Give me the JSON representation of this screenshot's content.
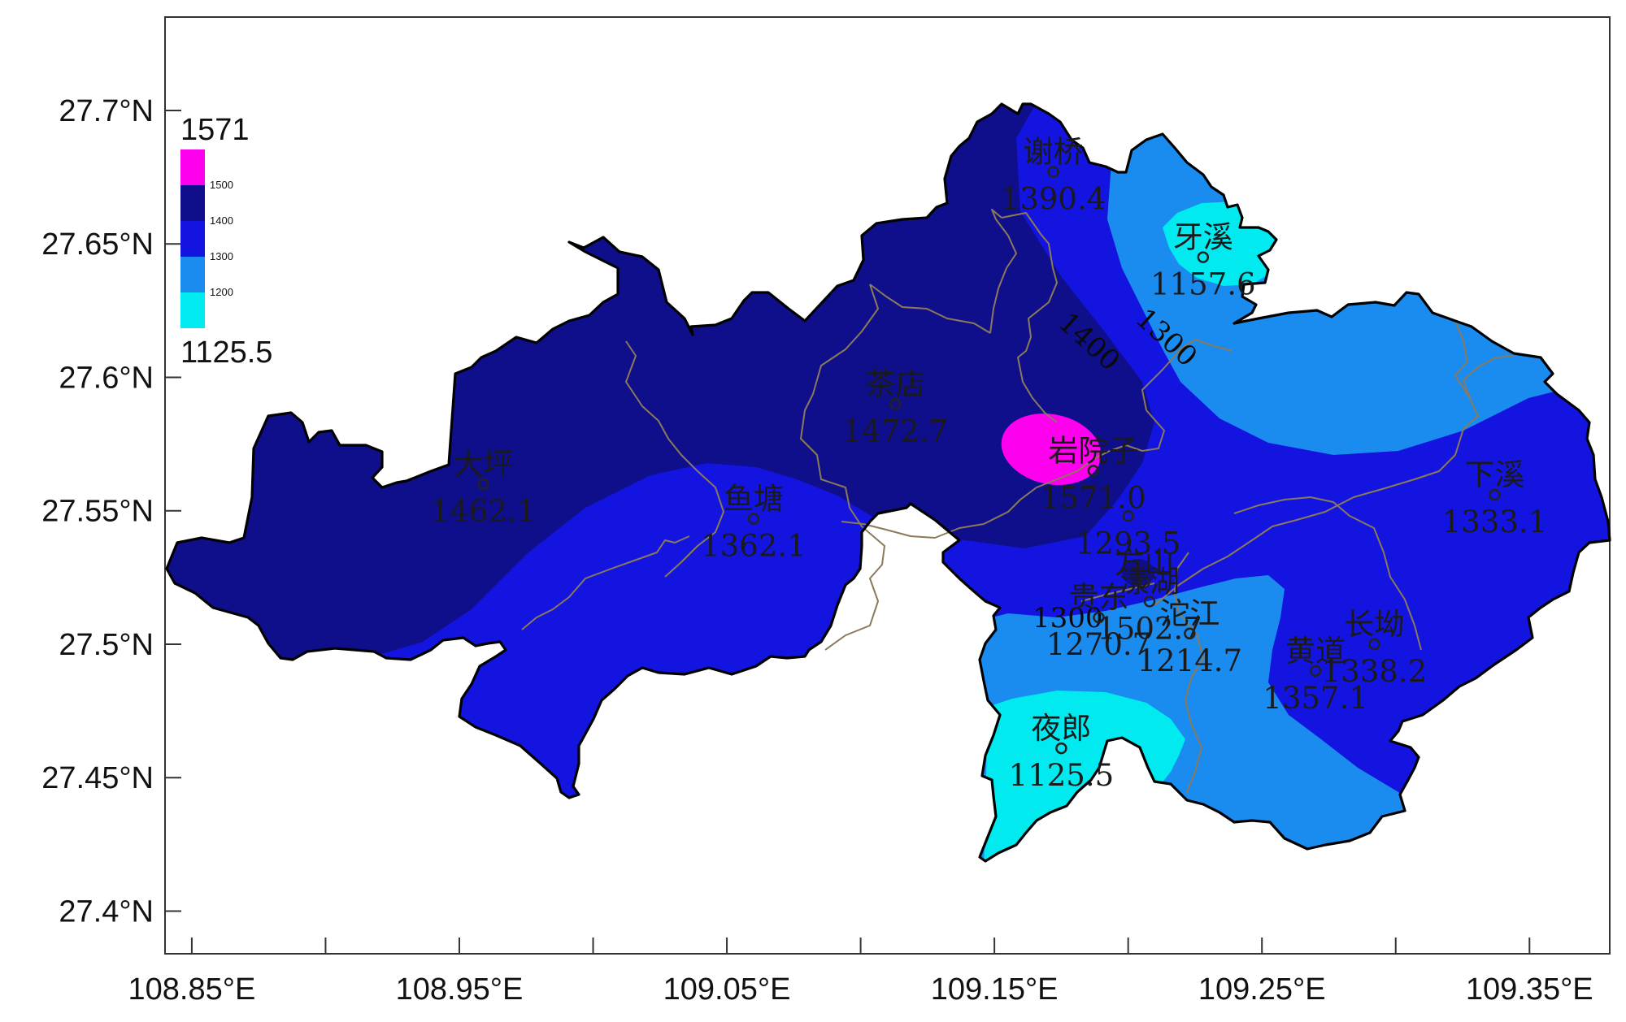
{
  "map": {
    "x_axis": {
      "ticks": [
        "108.85°E",
        "108.95°E",
        "109.05°E",
        "109.15°E",
        "109.25°E",
        "109.35°E"
      ],
      "range": [
        108.84,
        109.38
      ]
    },
    "y_axis": {
      "ticks": [
        "27.4°N",
        "27.45°N",
        "27.5°N",
        "27.55°N",
        "27.6°N",
        "27.65°N",
        "27.7°N"
      ],
      "range": [
        27.384,
        27.735
      ]
    },
    "legend": {
      "max_label": "1571",
      "min_label": "1125.5",
      "levels": [
        "1500",
        "1400",
        "1300",
        "1200"
      ],
      "colors": [
        "#ff00ee",
        "#0f0f8c",
        "#1414e0",
        "#1a8cf0",
        "#00eaf0"
      ]
    },
    "colors": {
      "outline": "#000000",
      "district_border": "#8a7a5a",
      "band_lt_1200": "#00eaf0",
      "band_1200_1300": "#1a8cf0",
      "band_1300_1400": "#1414e0",
      "band_1400_1500": "#0f0f8c",
      "band_gt_1500": "#ff00ee"
    },
    "contour_labels": [
      "1400",
      "1300",
      "1300"
    ],
    "stations": [
      {
        "name": "谢桥",
        "value": "1390.4",
        "lon": 109.172,
        "lat": 27.677
      },
      {
        "name": "牙溪",
        "value": "1157.6",
        "lon": 109.228,
        "lat": 27.645
      },
      {
        "name": "茶店",
        "value": "1472.7",
        "lon": 109.113,
        "lat": 27.59
      },
      {
        "name": "大坪",
        "value": "1462.1",
        "lon": 108.959,
        "lat": 27.56
      },
      {
        "name": "岩院子",
        "value": "1571.0",
        "lon": 109.187,
        "lat": 27.565
      },
      {
        "name": "鱼塘",
        "value": "1362.1",
        "lon": 109.06,
        "lat": 27.547
      },
      {
        "name": "下溪",
        "value": "1333.1",
        "lon": 109.337,
        "lat": 27.556
      },
      {
        "name": "",
        "value": "1293.5",
        "lon": 109.2,
        "lat": 27.548
      },
      {
        "name": "方山",
        "value": "",
        "lon": 109.206,
        "lat": 27.523
      },
      {
        "name": "贵东",
        "value": "1270.7",
        "lon": 109.189,
        "lat": 27.51
      },
      {
        "name": "漾湖",
        "value": "1502.7",
        "lon": 109.208,
        "lat": 27.516
      },
      {
        "name": "沱江",
        "value": "1214.7",
        "lon": 109.223,
        "lat": 27.504
      },
      {
        "name": "长坳",
        "value": "1338.2",
        "lon": 109.292,
        "lat": 27.5
      },
      {
        "name": "黄道",
        "value": "1357.1",
        "lon": 109.27,
        "lat": 27.49
      },
      {
        "name": "夜郎",
        "value": "1125.5",
        "lon": 109.175,
        "lat": 27.461
      }
    ]
  }
}
